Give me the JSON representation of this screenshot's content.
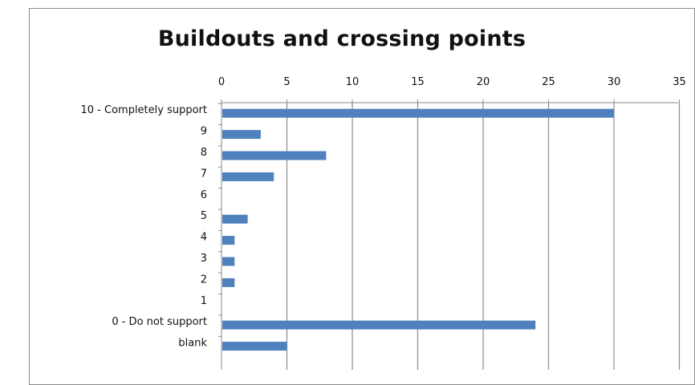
{
  "chart_data": {
    "type": "bar",
    "orientation": "horizontal",
    "title": "Buildouts and crossing points",
    "xlabel": "",
    "ylabel": "",
    "xlim": [
      0,
      35
    ],
    "x_ticks": [
      0,
      5,
      10,
      15,
      20,
      25,
      30,
      35
    ],
    "x_axis_position": "top",
    "grid": true,
    "categories": [
      "10 - Completely support",
      "9",
      "8",
      "7",
      "6",
      "5",
      "4",
      "3",
      "2",
      "1",
      "0 - Do not support",
      "blank"
    ],
    "values": [
      30,
      3,
      8,
      4,
      0,
      2,
      1,
      1,
      1,
      0,
      24,
      5
    ],
    "bar_color": "#4f81bd"
  }
}
